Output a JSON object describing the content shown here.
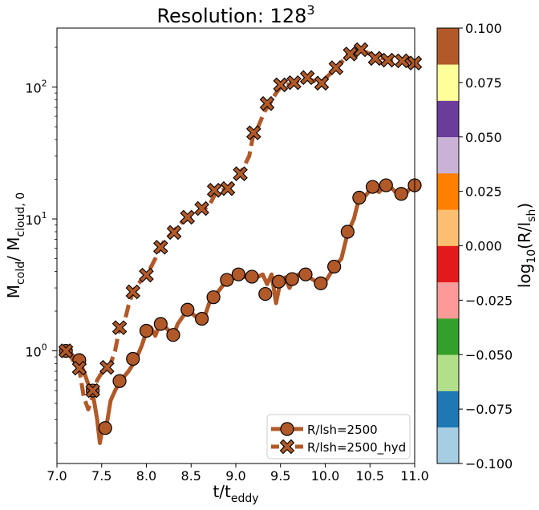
{
  "chart_data": {
    "type": "line",
    "title": "Resolution: 128",
    "title_superscript": "3",
    "xlabel": {
      "main": "t/t",
      "sub": "eddy"
    },
    "ylabel": {
      "parts": [
        {
          "t": "M"
        },
        {
          "t": "cold",
          "sub": true
        },
        {
          "t": "/ M"
        },
        {
          "t": "cloud, 0",
          "sub": true
        }
      ]
    },
    "xlim": [
      7.0,
      11.0
    ],
    "x_ticks": [
      7.0,
      7.5,
      8.0,
      8.5,
      9.0,
      9.5,
      10.0,
      10.5,
      11.0
    ],
    "x_tick_labels": [
      "7.0",
      "7.5",
      "8.0",
      "8.5",
      "9.0",
      "9.5",
      "10.0",
      "10.5",
      "11.0"
    ],
    "y_scale": "log",
    "ylim": [
      0.14,
      280
    ],
    "y_ticks": [
      {
        "value": 1,
        "base": "10",
        "exp": "0"
      },
      {
        "value": 10,
        "base": "10",
        "exp": "1"
      },
      {
        "value": 100,
        "base": "10",
        "exp": "2"
      }
    ],
    "grid": false,
    "legend_position": "lower-right",
    "series": [
      {
        "name": "R/lsh=2500",
        "color": "#b15928",
        "style": "solid",
        "marker": "circle",
        "line": [
          [
            7.1,
            1.0
          ],
          [
            7.15,
            0.97
          ],
          [
            7.2,
            0.88
          ],
          [
            7.25,
            0.84
          ],
          [
            7.3,
            0.7
          ],
          [
            7.35,
            0.56
          ],
          [
            7.4,
            0.48
          ],
          [
            7.45,
            0.3
          ],
          [
            7.48,
            0.2
          ],
          [
            7.5,
            0.24
          ],
          [
            7.55,
            0.26
          ],
          [
            7.6,
            0.42
          ],
          [
            7.65,
            0.5
          ],
          [
            7.7,
            0.58
          ],
          [
            7.8,
            0.7
          ],
          [
            7.88,
            0.85
          ],
          [
            7.95,
            1.1
          ],
          [
            8.0,
            1.4
          ],
          [
            8.05,
            1.5
          ],
          [
            8.1,
            1.3
          ],
          [
            8.15,
            1.6
          ],
          [
            8.2,
            1.55
          ],
          [
            8.3,
            1.3
          ],
          [
            8.35,
            1.6
          ],
          [
            8.45,
            2.0
          ],
          [
            8.52,
            1.9
          ],
          [
            8.6,
            1.7
          ],
          [
            8.65,
            1.8
          ],
          [
            8.72,
            2.5
          ],
          [
            8.8,
            2.8
          ],
          [
            8.88,
            3.3
          ],
          [
            8.95,
            3.5
          ],
          [
            9.05,
            3.7
          ],
          [
            9.12,
            3.6
          ],
          [
            9.2,
            3.5
          ],
          [
            9.3,
            3.8
          ],
          [
            9.35,
            3.2
          ],
          [
            9.4,
            3.8
          ],
          [
            9.45,
            2.3
          ],
          [
            9.5,
            3.4
          ],
          [
            9.55,
            3.6
          ],
          [
            9.6,
            3.0
          ],
          [
            9.65,
            3.5
          ],
          [
            9.7,
            3.8
          ],
          [
            9.78,
            3.9
          ],
          [
            9.85,
            3.5
          ],
          [
            9.95,
            3.2
          ],
          [
            10.02,
            3.5
          ],
          [
            10.1,
            4.3
          ],
          [
            10.18,
            5.0
          ],
          [
            10.25,
            7.8
          ],
          [
            10.32,
            10.0
          ],
          [
            10.38,
            14.5
          ],
          [
            10.45,
            15.0
          ],
          [
            10.53,
            17.5
          ],
          [
            10.6,
            16.0
          ],
          [
            10.68,
            18.0
          ],
          [
            10.75,
            17.0
          ],
          [
            10.82,
            15.0
          ],
          [
            10.9,
            15.5
          ],
          [
            10.96,
            17.5
          ],
          [
            11.0,
            18.0
          ]
        ],
        "points": [
          [
            7.1,
            1.0
          ],
          [
            7.25,
            0.85
          ],
          [
            7.4,
            0.5
          ],
          [
            7.54,
            0.26
          ],
          [
            7.7,
            0.59
          ],
          [
            7.85,
            0.87
          ],
          [
            8.0,
            1.42
          ],
          [
            8.16,
            1.6
          ],
          [
            8.3,
            1.32
          ],
          [
            8.46,
            2.05
          ],
          [
            8.62,
            1.75
          ],
          [
            8.75,
            2.55
          ],
          [
            8.9,
            3.45
          ],
          [
            9.03,
            3.8
          ],
          [
            9.18,
            3.65
          ],
          [
            9.33,
            2.7
          ],
          [
            9.48,
            3.35
          ],
          [
            9.63,
            3.5
          ],
          [
            9.78,
            3.8
          ],
          [
            9.95,
            3.25
          ],
          [
            10.1,
            4.35
          ],
          [
            10.25,
            8.0
          ],
          [
            10.38,
            14.5
          ],
          [
            10.53,
            17.5
          ],
          [
            10.68,
            18.0
          ],
          [
            10.85,
            15.5
          ],
          [
            11.0,
            18.0
          ]
        ]
      },
      {
        "name": "R/lsh=2500_hyd",
        "color": "#b15928",
        "style": "dashed",
        "marker": "x",
        "line": [
          [
            7.1,
            1.0
          ],
          [
            7.15,
            0.92
          ],
          [
            7.2,
            0.8
          ],
          [
            7.25,
            0.72
          ],
          [
            7.3,
            0.45
          ],
          [
            7.35,
            0.36
          ],
          [
            7.4,
            0.45
          ],
          [
            7.45,
            0.6
          ],
          [
            7.5,
            0.68
          ],
          [
            7.55,
            0.72
          ],
          [
            7.6,
            0.8
          ],
          [
            7.65,
            1.0
          ],
          [
            7.7,
            1.5
          ],
          [
            7.75,
            1.6
          ],
          [
            7.8,
            2.2
          ],
          [
            7.85,
            2.8
          ],
          [
            7.9,
            3.2
          ],
          [
            8.0,
            3.7
          ],
          [
            8.1,
            5.0
          ],
          [
            8.15,
            6.0
          ],
          [
            8.2,
            6.8
          ],
          [
            8.3,
            8.0
          ],
          [
            8.4,
            9.5
          ],
          [
            8.5,
            10.3
          ],
          [
            8.6,
            11.5
          ],
          [
            8.7,
            12.5
          ],
          [
            8.78,
            16.0
          ],
          [
            8.9,
            17.0
          ],
          [
            9.0,
            20.0
          ],
          [
            9.08,
            24.0
          ],
          [
            9.15,
            30.0
          ],
          [
            9.2,
            45.0
          ],
          [
            9.25,
            50.0
          ],
          [
            9.32,
            65.0
          ],
          [
            9.38,
            75.0
          ],
          [
            9.45,
            90.0
          ],
          [
            9.52,
            104.0
          ],
          [
            9.6,
            105.0
          ],
          [
            9.68,
            110.0
          ],
          [
            9.78,
            118.0
          ],
          [
            9.86,
            112.0
          ],
          [
            9.95,
            108.0
          ],
          [
            10.05,
            125.0
          ],
          [
            10.15,
            145.0
          ],
          [
            10.25,
            175.0
          ],
          [
            10.35,
            190.0
          ],
          [
            10.45,
            185.0
          ],
          [
            10.55,
            170.0
          ],
          [
            10.65,
            165.0
          ],
          [
            10.75,
            158.0
          ],
          [
            10.85,
            160.0
          ],
          [
            10.95,
            155.0
          ],
          [
            11.0,
            150.0
          ]
        ],
        "points": [
          [
            7.1,
            1.0
          ],
          [
            7.25,
            0.74
          ],
          [
            7.4,
            0.5
          ],
          [
            7.56,
            0.75
          ],
          [
            7.7,
            1.5
          ],
          [
            7.85,
            2.8
          ],
          [
            8.0,
            3.75
          ],
          [
            8.16,
            6.1
          ],
          [
            8.31,
            7.9
          ],
          [
            8.46,
            10.3
          ],
          [
            8.62,
            12.0
          ],
          [
            8.76,
            16.5
          ],
          [
            8.91,
            17.0
          ],
          [
            9.05,
            22.0
          ],
          [
            9.2,
            45.0
          ],
          [
            9.35,
            75.0
          ],
          [
            9.5,
            104.0
          ],
          [
            9.65,
            108.0
          ],
          [
            9.8,
            118.0
          ],
          [
            9.96,
            107.0
          ],
          [
            10.12,
            140.0
          ],
          [
            10.28,
            178.0
          ],
          [
            10.4,
            192.0
          ],
          [
            10.56,
            165.0
          ],
          [
            10.7,
            160.0
          ],
          [
            10.86,
            158.0
          ],
          [
            11.0,
            152.0
          ]
        ]
      }
    ],
    "colorbar": {
      "label": {
        "main": "log",
        "sub1": "10",
        "mid": "(R/l",
        "sub2": "sh",
        "end": ")"
      },
      "range": [
        -0.1,
        0.1
      ],
      "colors": [
        "#a6cee3",
        "#1f78b4",
        "#b2df8a",
        "#33a02c",
        "#fb9a99",
        "#e31a1c",
        "#fdbf6f",
        "#ff7f00",
        "#cab2d6",
        "#6a3d9a",
        "#ffff99",
        "#b15928"
      ],
      "tick_values": [
        -0.1,
        -0.075,
        -0.05,
        -0.025,
        0.0,
        0.025,
        0.05,
        0.075,
        0.1
      ],
      "tick_labels": [
        "−0.100",
        "−0.075",
        "−0.050",
        "−0.025",
        "0.000",
        "0.025",
        "0.050",
        "0.075",
        "0.100"
      ]
    }
  }
}
